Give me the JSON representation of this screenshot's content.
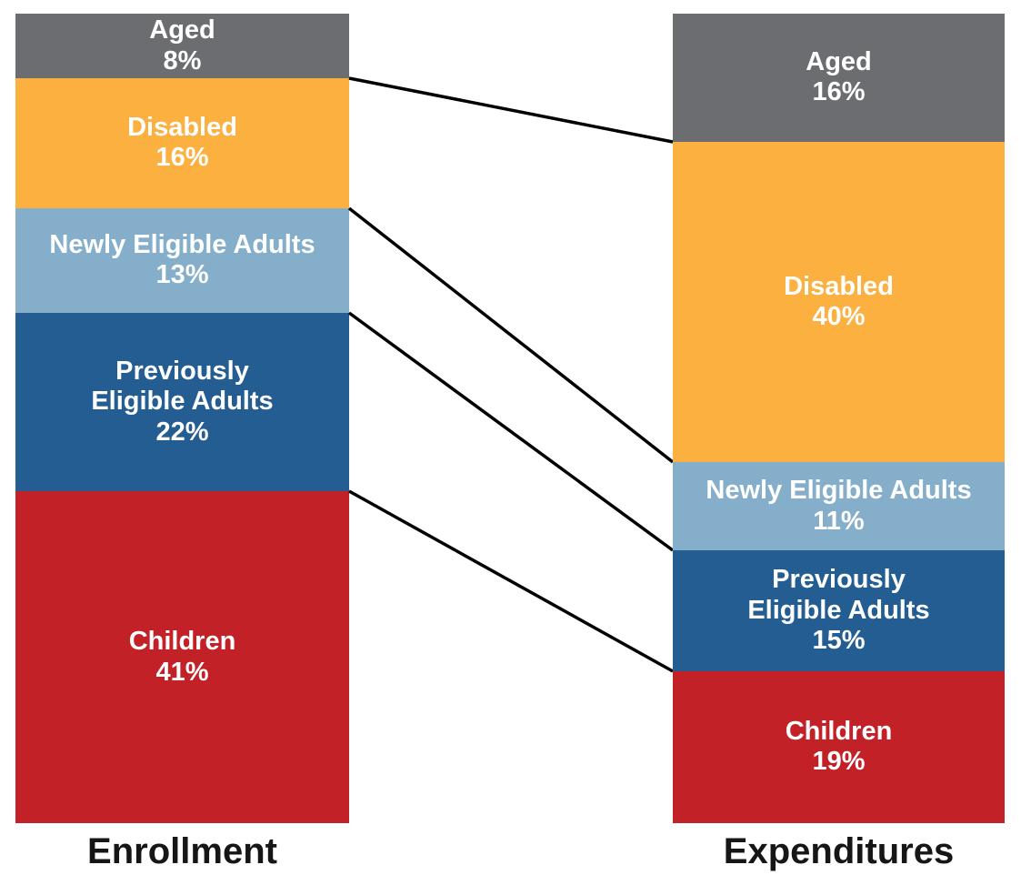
{
  "chart_data": {
    "type": "bar",
    "subtype": "100-percent-stacked-slope-comparison",
    "categories": [
      "Aged",
      "Disabled",
      "Newly Eligible Adults",
      "Previously Eligible Adults",
      "Children"
    ],
    "segment_label_lines": [
      [
        "Aged"
      ],
      [
        "Disabled"
      ],
      [
        "Newly Eligible Adults"
      ],
      [
        "Previously",
        "Eligible Adults"
      ],
      [
        "Children"
      ]
    ],
    "colors": [
      "#6c6d70",
      "#fbb03f",
      "#84aec9",
      "#235d92",
      "#c12127"
    ],
    "series": [
      {
        "name": "Enrollment",
        "values": [
          8,
          16,
          13,
          22,
          41
        ]
      },
      {
        "name": "Expenditures",
        "values": [
          16,
          40,
          11,
          15,
          19
        ]
      }
    ],
    "value_suffix": "%",
    "title": "",
    "xlabel": "",
    "ylabel": "",
    "legend_position": "none",
    "grid": false,
    "segment_text_color": "#ffffff",
    "axis_label_color": "#161616",
    "connector_color": "#000000",
    "connector_width": 3.5,
    "background_color": "#ffffff"
  },
  "columns": {
    "left_title": "Enrollment",
    "right_title": "Expenditures"
  }
}
